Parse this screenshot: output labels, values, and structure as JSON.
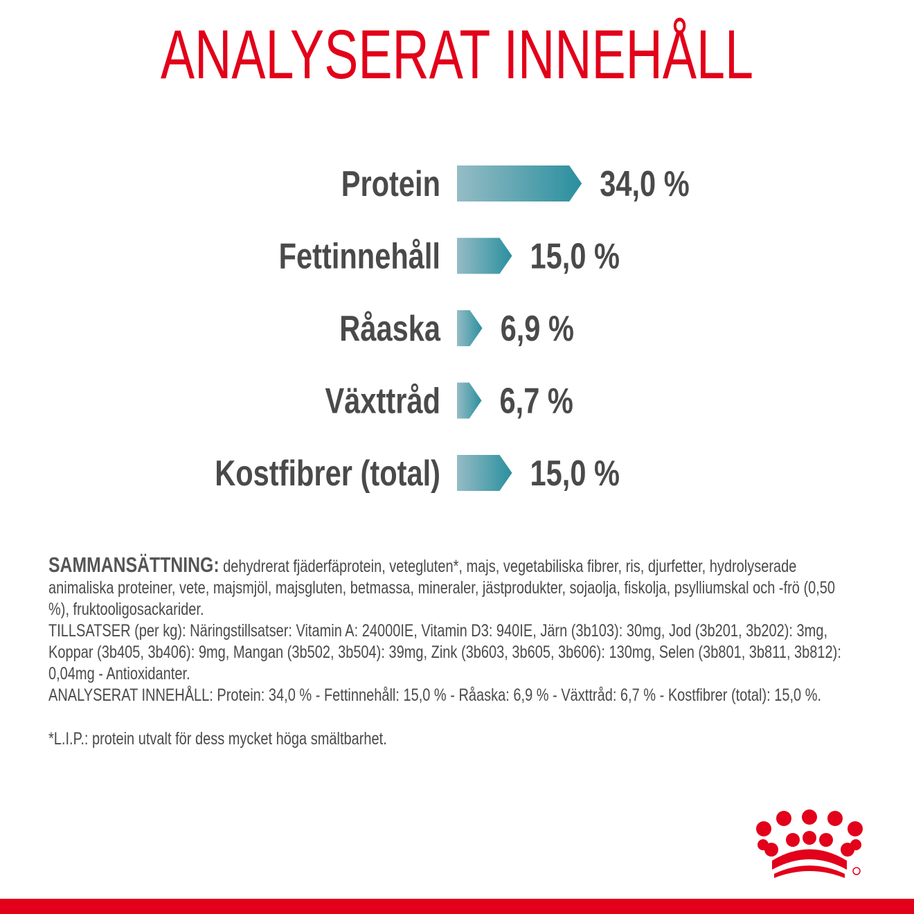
{
  "chart_data": {
    "type": "bar",
    "orientation": "horizontal",
    "title": "ANALYSERAT INNEHÅLL",
    "categories": [
      "Protein",
      "Fettinnehåll",
      "Råaska",
      "Växttråd",
      "Kostfibrer (total)"
    ],
    "values": [
      34,
      15,
      6.9,
      6.7,
      15
    ],
    "value_labels": [
      "34,0 %",
      "15,0 %",
      "6,9 %",
      "6,7 %",
      "15,0 %"
    ],
    "color": "#2a8f9e"
  },
  "composition": {
    "heading": "SAMMANSÄTTNING:",
    "text": "dehydrerat fjäderfäprotein, vetegluten*, majs, vegetabiliska fibrer, ris, djurfetter, hydrolyserade animaliska proteiner, vete, majsmjöl, majsgluten, betmassa, mineraler, jästprodukter, sojaolja, fiskolja, psylliumskal och -frö (0,50 %), fruktooligosackarider.",
    "additives": "TILLSATSER (per kg): Näringstillsatser: Vitamin A: 24000IE, Vitamin D3: 940IE, Järn (3b103): 30mg, Jod (3b201, 3b202): 3mg, Koppar (3b405, 3b406): 9mg, Mangan (3b502, 3b504): 39mg, Zink (3b603, 3b605, 3b606): 130mg, Selen (3b801, 3b811, 3b812): 0,04mg - Antioxidanter.",
    "analysis": "ANALYSERAT INNEHÅLL: Protein: 34,0 % - Fettinnehåll: 15,0 % - Råaska: 6,9 % - Växttråd: 6,7 % - Kostfibrer (total): 15,0 %.",
    "footnote": "*L.I.P.: protein utvalt för dess mycket höga smältbarhet."
  }
}
